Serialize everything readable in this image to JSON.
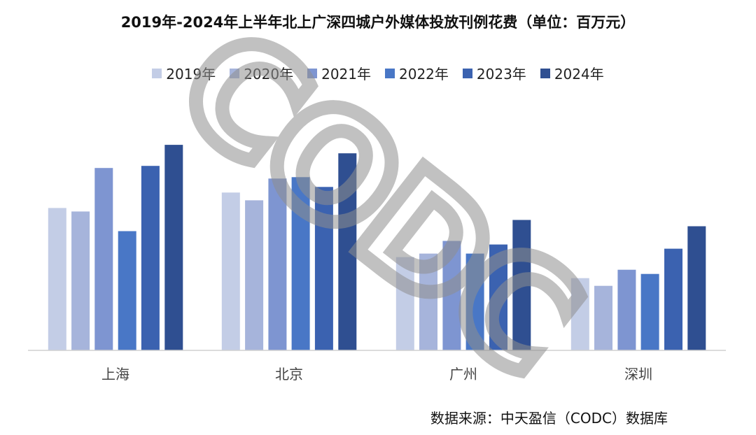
{
  "chart_data": {
    "type": "bar",
    "title": "2019年-2024年上半年北上广深四城户外媒体投放刊例花费（单位：百万元）",
    "categories": [
      "上海",
      "北京",
      "广州",
      "深圳"
    ],
    "series": [
      {
        "name": "2019年",
        "color": "#c3cde6",
        "values": [
          203,
          225,
          133,
          103
        ]
      },
      {
        "name": "2020年",
        "color": "#a6b4db",
        "values": [
          198,
          214,
          138,
          92
        ]
      },
      {
        "name": "2021年",
        "color": "#7e95d1",
        "values": [
          260,
          245,
          156,
          115
        ]
      },
      {
        "name": "2022年",
        "color": "#4977c6",
        "values": [
          170,
          247,
          138,
          109
        ]
      },
      {
        "name": "2023年",
        "color": "#3b62b0",
        "values": [
          263,
          233,
          151,
          145
        ]
      },
      {
        "name": "2024年",
        "color": "#2f4f91",
        "values": [
          293,
          281,
          186,
          177
        ]
      }
    ],
    "ylim": [
      0,
      340
    ],
    "gridlines": false,
    "legend_position": "top"
  },
  "watermark": "CODC",
  "source_text": "数据来源：中天盈信（CODC）数据库"
}
